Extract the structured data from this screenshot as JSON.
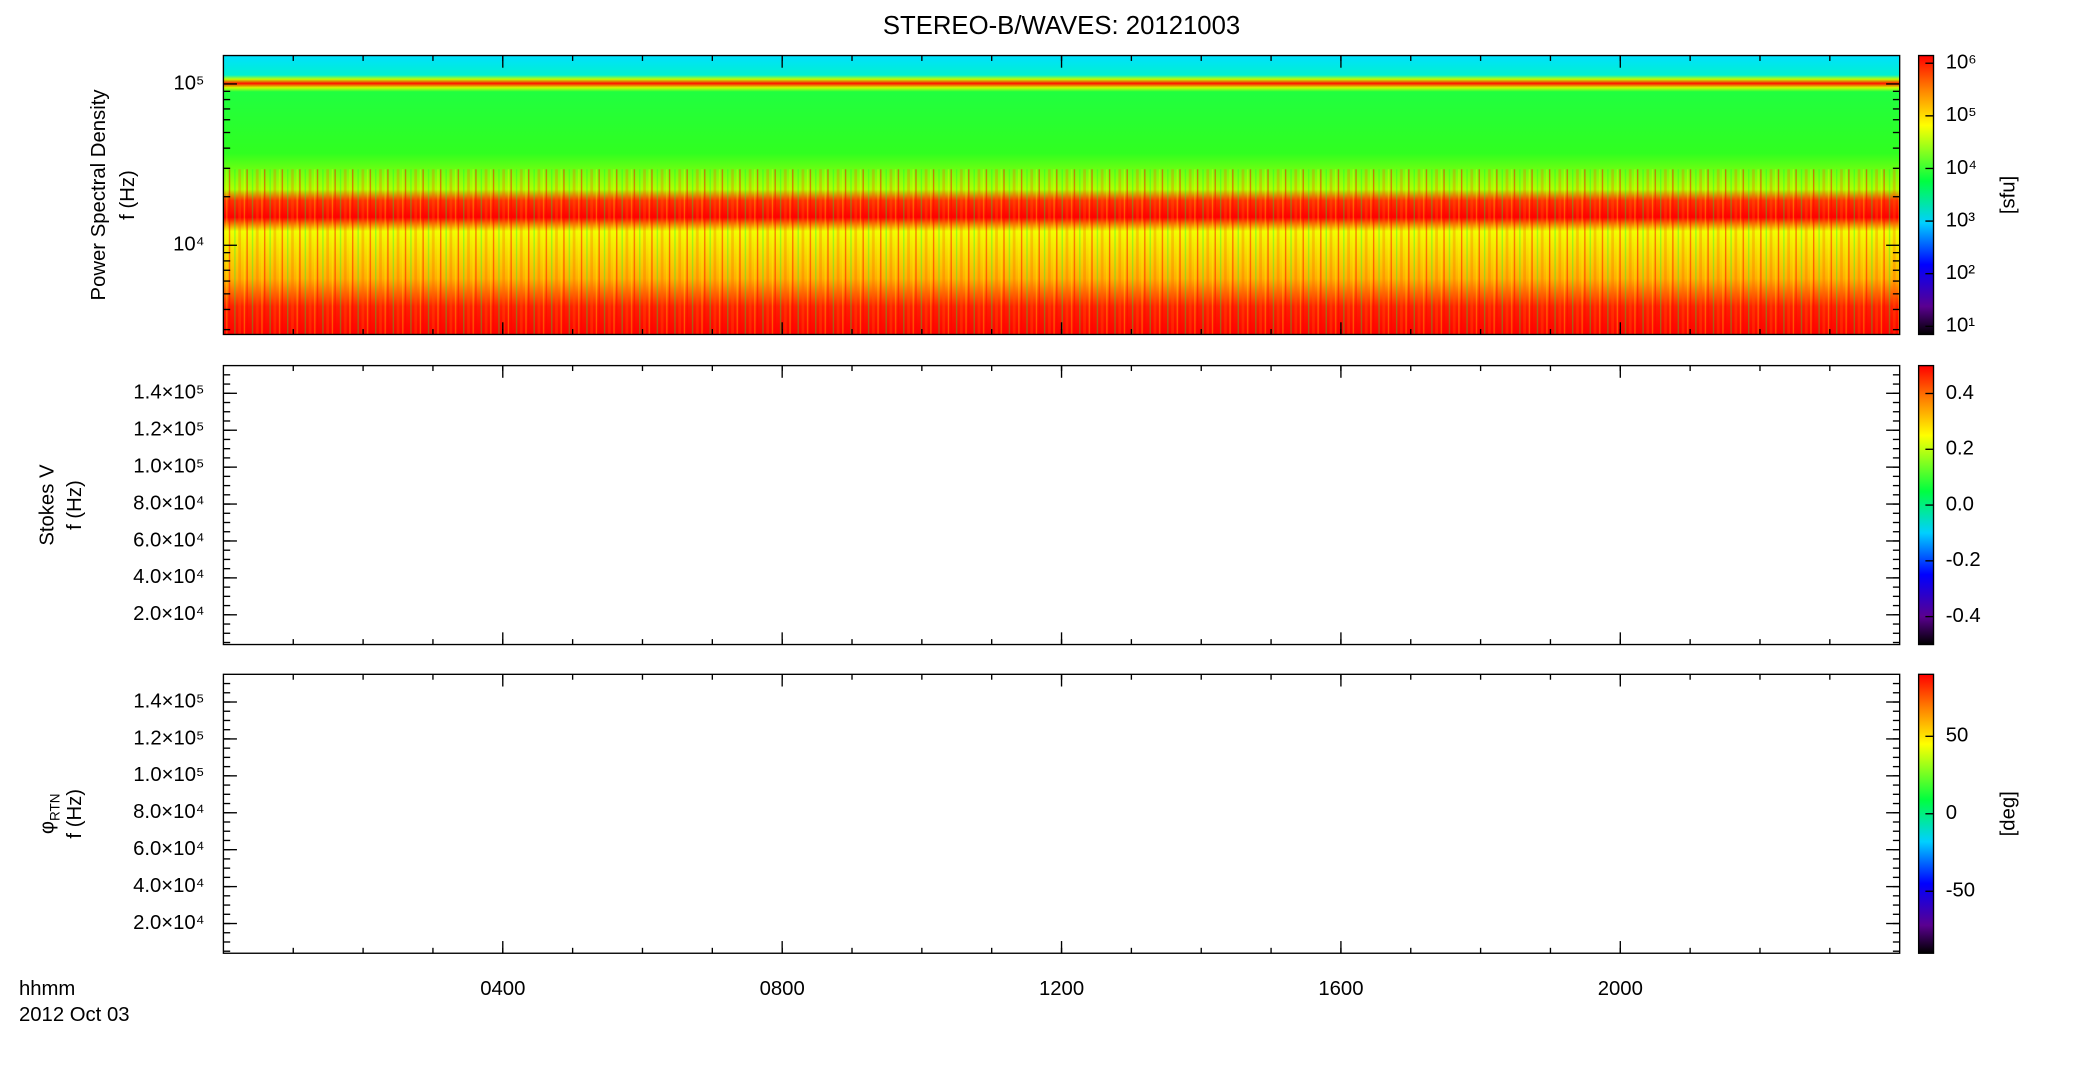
{
  "title": "STEREO-B/WAVES: 20121003",
  "xaxis": {
    "label": "hhmm",
    "date": "2012 Oct 03",
    "xlim": [
      0,
      24
    ],
    "xticks": [
      {
        "value": 4,
        "label": "0400"
      },
      {
        "value": 8,
        "label": "0800"
      },
      {
        "value": 12,
        "label": "1200"
      },
      {
        "value": 16,
        "label": "1600"
      },
      {
        "value": 20,
        "label": "2000"
      }
    ]
  },
  "chart_data": [
    {
      "type": "spectrogram",
      "y_label": "Power Spectral Density",
      "y_label2": "f (Hz)",
      "log": true,
      "ylim": [
        2800,
        150000
      ],
      "yticks": [
        {
          "value": 10000,
          "label": "10⁴"
        },
        {
          "value": 100000,
          "label": "10⁵"
        }
      ],
      "colorbar": {
        "label": "[sfu]",
        "log": true,
        "lim": [
          7,
          1400000
        ],
        "ticks": [
          {
            "value": 10,
            "label": "10¹"
          },
          {
            "value": 100,
            "label": "10²"
          },
          {
            "value": 1000,
            "label": "10³"
          },
          {
            "value": 10000,
            "label": "10⁴"
          },
          {
            "value": 100000,
            "label": "10⁵"
          },
          {
            "value": 1000000,
            "label": "10⁶"
          }
        ]
      }
    },
    {
      "type": "spectrogram",
      "y_label": "Stokes V",
      "y_label2": "f (Hz)",
      "log": false,
      "ylim": [
        3900,
        155000
      ],
      "yticks": [
        {
          "value": 20000,
          "label": "2.0×10⁴"
        },
        {
          "value": 40000,
          "label": "4.0×10⁴"
        },
        {
          "value": 60000,
          "label": "6.0×10⁴"
        },
        {
          "value": 80000,
          "label": "8.0×10⁴"
        },
        {
          "value": 100000,
          "label": "1.0×10⁵"
        },
        {
          "value": 120000,
          "label": "1.2×10⁵"
        },
        {
          "value": 140000,
          "label": "1.4×10⁵"
        }
      ],
      "colorbar": {
        "log": false,
        "lim": [
          -0.5,
          0.5
        ],
        "ticks": [
          -0.4,
          -0.2,
          {
            "value": 0,
            "label": "0.0"
          },
          0.2,
          0.4
        ]
      }
    },
    {
      "type": "spectrogram",
      "y_label": "φ",
      "y_label_sub": "RTN",
      "y_label2": "f (Hz)",
      "log": false,
      "ylim": [
        3900,
        155000
      ],
      "yticks": [
        {
          "value": 20000,
          "label": "2.0×10⁴"
        },
        {
          "value": 40000,
          "label": "4.0×10⁴"
        },
        {
          "value": 60000,
          "label": "6.0×10⁴"
        },
        {
          "value": 80000,
          "label": "8.0×10⁴"
        },
        {
          "value": 100000,
          "label": "1.0×10⁵"
        },
        {
          "value": 120000,
          "label": "1.2×10⁵"
        },
        {
          "value": 140000,
          "label": "1.4×10⁵"
        }
      ],
      "colorbar": {
        "label": "[deg]",
        "log": false,
        "lim": [
          -90,
          90
        ],
        "ticks": [
          -50,
          0,
          50
        ]
      }
    }
  ]
}
